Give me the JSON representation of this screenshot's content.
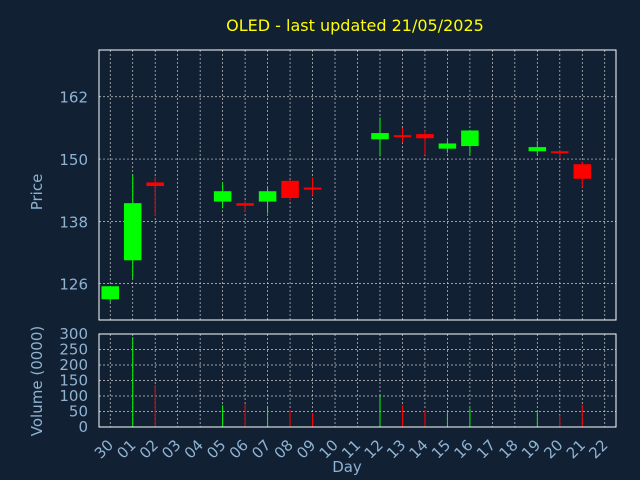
{
  "chart_data": [
    {
      "type": "candlestick",
      "title": "OLED - last updated 21/05/2025",
      "ylabel": "Price",
      "ylim": [
        119,
        171
      ],
      "yticks": [
        126,
        138,
        150,
        162
      ],
      "grid": true,
      "categories": [
        "30",
        "01",
        "02",
        "03",
        "04",
        "05",
        "06",
        "07",
        "08",
        "09",
        "10",
        "11",
        "12",
        "13",
        "14",
        "15",
        "16",
        "17",
        "18",
        "19",
        "20",
        "21",
        "22"
      ],
      "candles": [
        {
          "x": "30",
          "open": 123.0,
          "close": 125.5,
          "high": 125.5,
          "low": 122.5
        },
        {
          "x": "01",
          "open": 130.5,
          "close": 141.5,
          "high": 147.0,
          "low": 127.0
        },
        {
          "x": "02",
          "open": 145.5,
          "close": 144.8,
          "high": 146.5,
          "low": 139.0
        },
        {
          "x": "05",
          "open": 141.8,
          "close": 143.8,
          "high": 145.5,
          "low": 140.5
        },
        {
          "x": "06",
          "open": 141.5,
          "close": 141.0,
          "high": 142.0,
          "low": 139.8
        },
        {
          "x": "07",
          "open": 141.8,
          "close": 143.8,
          "high": 144.5,
          "low": 139.5
        },
        {
          "x": "08",
          "open": 145.8,
          "close": 142.5,
          "high": 146.0,
          "low": 142.0
        },
        {
          "x": "09",
          "open": 144.5,
          "close": 144.3,
          "high": 146.5,
          "low": 143.0
        },
        {
          "x": "12",
          "open": 153.8,
          "close": 155.0,
          "high": 158.0,
          "low": 150.5
        },
        {
          "x": "13",
          "open": 154.6,
          "close": 154.4,
          "high": 156.0,
          "low": 153.2
        },
        {
          "x": "14",
          "open": 154.8,
          "close": 154.0,
          "high": 155.5,
          "low": 150.8
        },
        {
          "x": "15",
          "open": 152.0,
          "close": 153.0,
          "high": 153.8,
          "low": 151.2
        },
        {
          "x": "16",
          "open": 152.5,
          "close": 155.5,
          "high": 155.5,
          "low": 150.8
        },
        {
          "x": "19",
          "open": 151.5,
          "close": 152.3,
          "high": 153.5,
          "low": 150.8
        },
        {
          "x": "20",
          "open": 151.5,
          "close": 151.2,
          "high": 151.8,
          "low": 150.0
        },
        {
          "x": "21",
          "open": 149.0,
          "close": 146.2,
          "high": 149.5,
          "low": 144.5
        }
      ]
    },
    {
      "type": "bar",
      "ylabel": "Volume (0000)",
      "xlabel": "Day",
      "ylim": [
        0,
        300
      ],
      "yticks": [
        0,
        50,
        100,
        150,
        200,
        250,
        300
      ],
      "grid": true,
      "categories": [
        "30",
        "01",
        "02",
        "03",
        "04",
        "05",
        "06",
        "07",
        "08",
        "09",
        "10",
        "11",
        "12",
        "13",
        "14",
        "15",
        "16",
        "17",
        "18",
        "19",
        "20",
        "21",
        "22"
      ],
      "values": [
        {
          "x": "01",
          "volume": 290,
          "direction": "up"
        },
        {
          "x": "02",
          "volume": 135,
          "direction": "down"
        },
        {
          "x": "05",
          "volume": 70,
          "direction": "up"
        },
        {
          "x": "06",
          "volume": 75,
          "direction": "down"
        },
        {
          "x": "07",
          "volume": 68,
          "direction": "up"
        },
        {
          "x": "08",
          "volume": 55,
          "direction": "down"
        },
        {
          "x": "09",
          "volume": 45,
          "direction": "down"
        },
        {
          "x": "12",
          "volume": 100,
          "direction": "up"
        },
        {
          "x": "13",
          "volume": 70,
          "direction": "down"
        },
        {
          "x": "14",
          "volume": 55,
          "direction": "down"
        },
        {
          "x": "15",
          "volume": 48,
          "direction": "up"
        },
        {
          "x": "16",
          "volume": 60,
          "direction": "up"
        },
        {
          "x": "19",
          "volume": 48,
          "direction": "up"
        },
        {
          "x": "20",
          "volume": 38,
          "direction": "down"
        },
        {
          "x": "21",
          "volume": 72,
          "direction": "down"
        }
      ]
    }
  ],
  "colors": {
    "background": "#112033",
    "up": "#00ff00",
    "down": "#ff0000",
    "title": "#ffff00",
    "label": "#8fb3d1",
    "grid": "#cccccc",
    "axis": "#ffffff"
  }
}
